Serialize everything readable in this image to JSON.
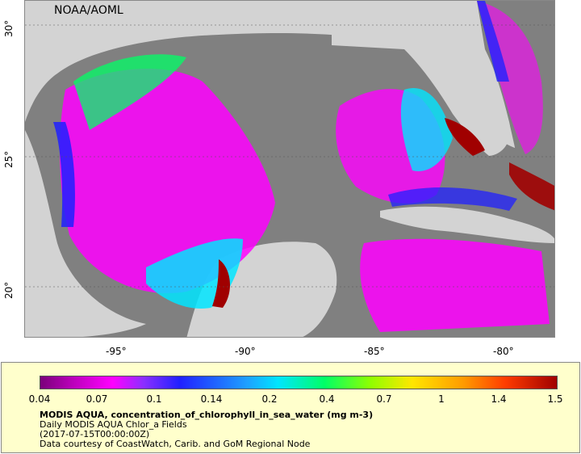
{
  "map": {
    "credit": "NOAA/AOML",
    "lat_labels": [
      "30°",
      "25°",
      "20°"
    ],
    "lon_labels": [
      "-95°",
      "-90°",
      "-85°",
      "-80°"
    ]
  },
  "legend": {
    "ticks": [
      "0.04",
      "0.07",
      "0.1",
      "0.14",
      "0.2",
      "0.4",
      "0.7",
      "1",
      "1.4",
      "1.5"
    ],
    "title": "MODIS AQUA, concentration_of_chlorophyll_in_sea_water (mg m-3)",
    "line2": "Daily MODIS AQUA Chlor_a Fields",
    "line3": "(2017-07-15T00:00:00Z)",
    "line4": "Data courtesy of CoastWatch, Carib. and GoM Regional Node"
  },
  "colors": {
    "land": "#d3d3d3",
    "no_data": "#808080",
    "low": "#ff00ff",
    "high": "#a00000"
  }
}
